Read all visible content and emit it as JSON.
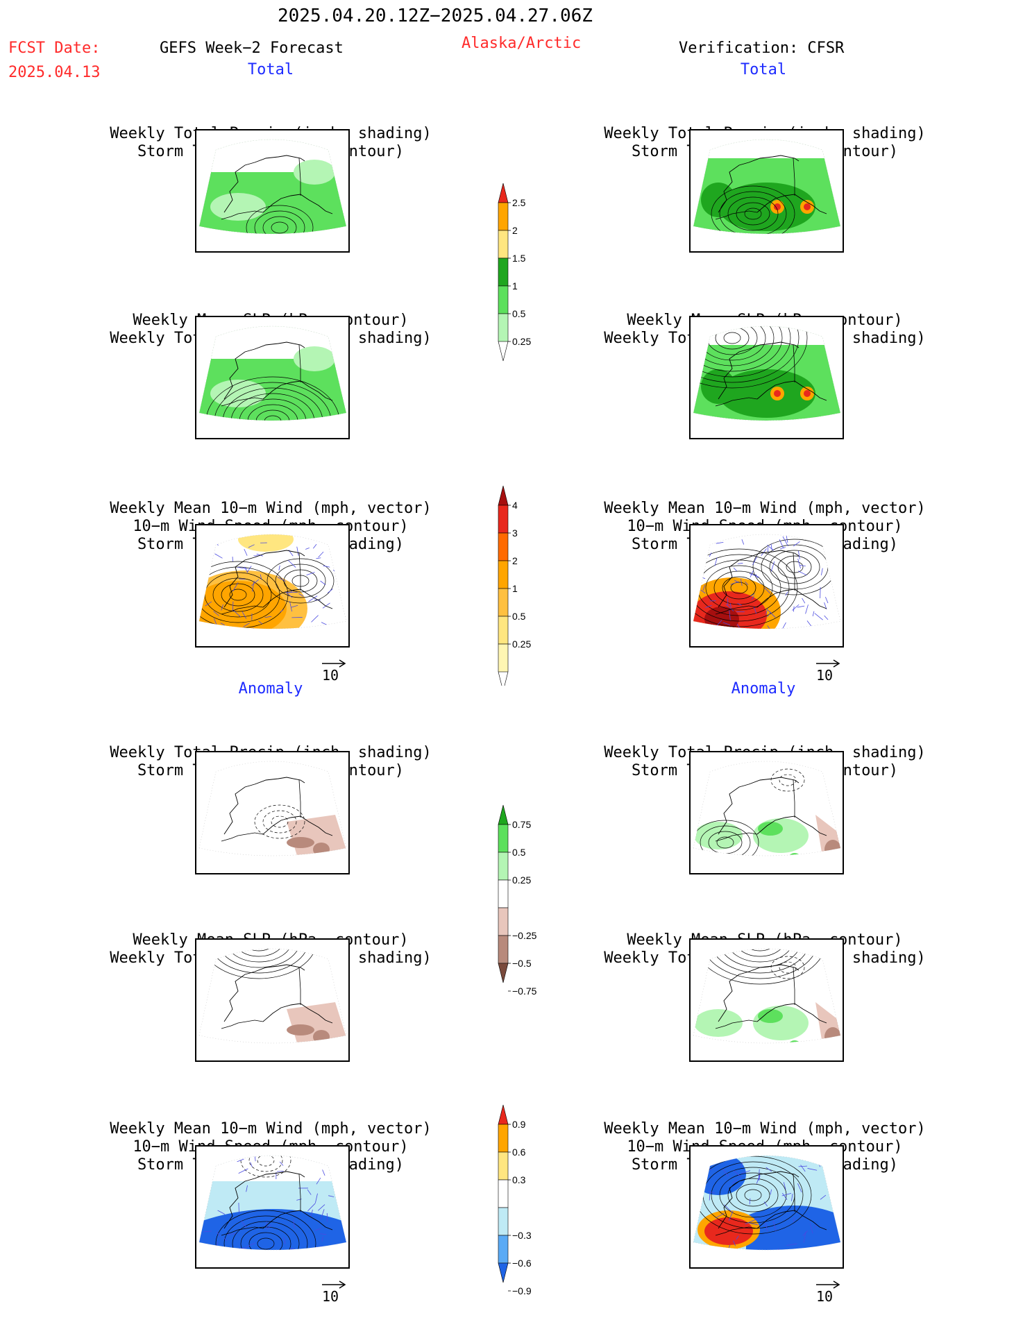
{
  "header": {
    "period": "2025.04.20.12Z−2025.04.27.06Z",
    "fcst_label": "FCST Date:",
    "fcst_date": "2025.04.13",
    "left_title": "GEFS Week−2 Forecast",
    "region": "Alaska/Arctic",
    "right_title": "Verification: CFSR"
  },
  "sections": {
    "total": "Total",
    "anomaly": "Anomaly"
  },
  "titles": {
    "precip_track": [
      "Weekly Total Precip (inch, shading)",
      "Storm Track Density (contour)"
    ],
    "slp_precip": [
      "Weekly Mean SLP (hPa, contour)",
      "Weekly Total Precip (inch, shading)"
    ],
    "wind_track": [
      "Weekly Mean 10−m Wind (mph, vector)",
      "10−m Wind Speed (mph, contour)",
      "Storm Track Density (shading)"
    ]
  },
  "vector_ref": "10",
  "colorbars": {
    "precip_total": {
      "labels": [
        "2.5",
        "2",
        "1.5",
        "1",
        "0.5",
        "0.25"
      ],
      "colors": [
        "#e8281d",
        "#ffa500",
        "#ffe680",
        "#1fa61f",
        "#5de05d",
        "#b4f5b4"
      ]
    },
    "track_total": {
      "labels": [
        "4",
        "3",
        "2",
        "1",
        "0.5",
        "0.25"
      ],
      "colors": [
        "#a60f0f",
        "#e8281d",
        "#ff6a00",
        "#ffa500",
        "#ffc040",
        "#ffe680",
        "#fff6b3"
      ]
    },
    "precip_anom": {
      "labels": [
        "0.75",
        "0.5",
        "0.25",
        "−0.25",
        "−0.5",
        "−0.75"
      ],
      "colors": [
        "#1fa61f",
        "#5de05d",
        "#b4f5b4",
        "#ffffff",
        "#e8c6bc",
        "#b88a7c",
        "#7a4a3c"
      ]
    },
    "track_anom": {
      "labels": [
        "0.9",
        "0.6",
        "0.3",
        "−0.3",
        "−0.6",
        "−0.9"
      ],
      "colors": [
        "#e8281d",
        "#ffa500",
        "#ffe680",
        "#ffffff",
        "#bfeaf5",
        "#5aaaf5",
        "#1f64e6"
      ]
    }
  },
  "panels": {
    "precip_fill": "#5de05d",
    "precip_light": "#b4f5b4",
    "precip_dark": "#1fa61f",
    "orange": "#ffa500",
    "red": "#e8281d",
    "dark_red": "#a60f0f",
    "brown": "#b88a7c",
    "light_brown": "#e8c6bc",
    "blue": "#1f64e6",
    "light_blue": "#bfeaf5",
    "vector_color": "#4a4ae0"
  }
}
